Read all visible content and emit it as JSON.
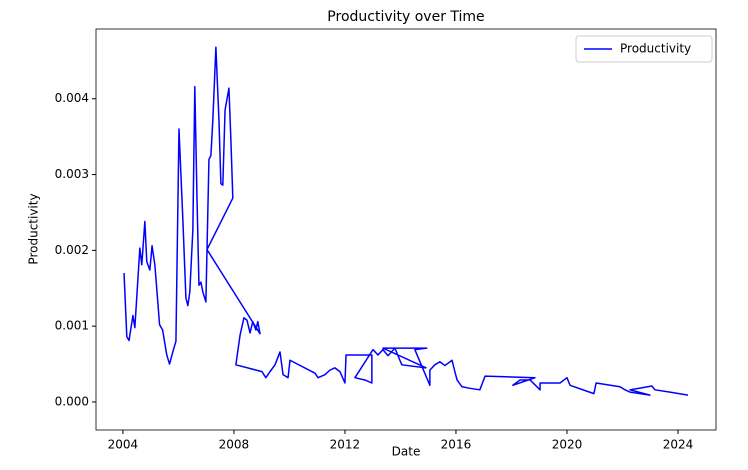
{
  "chart_data": {
    "type": "line",
    "title": "Productivity over Time",
    "xlabel": "Date",
    "ylabel": "Productivity",
    "x": [
      2004.04,
      2004.14,
      2004.22,
      2004.36,
      2004.43,
      2004.61,
      2004.68,
      2004.79,
      2004.86,
      2004.97,
      2005.05,
      2005.15,
      2005.25,
      2005.32,
      2005.43,
      2005.58,
      2005.68,
      2005.82,
      2005.91,
      2006.02,
      2006.16,
      2006.27,
      2006.34,
      2006.41,
      2006.52,
      2006.59,
      2006.67,
      2006.74,
      2006.81,
      2006.88,
      2006.99,
      2007.03,
      2007.1,
      2007.17,
      2007.24,
      2007.35,
      2007.46,
      2007.53,
      2007.6,
      2007.68,
      2007.82,
      2007.89,
      2007.96,
      2007.03,
      2008.94,
      2008.86,
      2008.79,
      2008.68,
      2008.58,
      2008.47,
      2008.36,
      2008.22,
      2008.07,
      2009.01,
      2009.15,
      2009.3,
      2009.48,
      2009.66,
      2009.77,
      2009.95,
      2010.02,
      2010.92,
      2011.03,
      2011.28,
      2011.46,
      2011.64,
      2011.82,
      2012.0,
      2012.04,
      2012.97,
      2012.97,
      2012.72,
      2012.36,
      2013.01,
      2013.19,
      2013.37,
      2013.55,
      2013.8,
      2013.98,
      2014.05,
      2014.92,
      2013.37,
      2014.95,
      2014.52,
      2015.06,
      2015.06,
      2015.24,
      2015.42,
      2015.6,
      2015.86,
      2015.96,
      2016.04,
      2016.22,
      2016.5,
      2016.86,
      2017.05,
      2018.85,
      2018.05,
      2018.31,
      2018.67,
      2019.03,
      2019.03,
      2019.75,
      2020.0,
      2020.11,
      2020.97,
      2021.05,
      2021.91,
      2022.09,
      2022.27,
      2022.99,
      2022.27,
      2023.06,
      2023.17,
      2023.71,
      2024.36
    ],
    "series": [
      {
        "name": "Productivity",
        "color": "#0000ff",
        "values": [
          0.0017,
          0.00086,
          0.00081,
          0.00114,
          0.00098,
          0.00203,
          0.00181,
          0.00238,
          0.00185,
          0.00174,
          0.00206,
          0.00181,
          0.00135,
          0.00102,
          0.00095,
          0.00062,
          0.0005,
          0.00069,
          0.0008,
          0.0036,
          0.0024,
          0.00137,
          0.00127,
          0.00145,
          0.00227,
          0.00416,
          0.00267,
          0.00154,
          0.00158,
          0.00145,
          0.00132,
          0.00201,
          0.0032,
          0.00325,
          0.00372,
          0.00468,
          0.00372,
          0.00288,
          0.00286,
          0.00385,
          0.00414,
          0.00346,
          0.00269,
          0.00201,
          0.0009,
          0.00106,
          0.00095,
          0.00106,
          0.00091,
          0.00108,
          0.00111,
          0.00088,
          0.00049,
          0.0004,
          0.00032,
          0.0004,
          0.00049,
          0.00066,
          0.00036,
          0.00032,
          0.00055,
          0.00038,
          0.00032,
          0.00036,
          0.00042,
          0.00045,
          0.0004,
          0.00025,
          0.00062,
          0.00062,
          0.00025,
          0.00029,
          0.00032,
          0.00069,
          0.00062,
          0.00069,
          0.00061,
          0.00071,
          0.00055,
          0.00049,
          0.00045,
          0.00071,
          0.00071,
          0.00069,
          0.00022,
          0.00042,
          0.00049,
          0.00053,
          0.00048,
          0.00055,
          0.0004,
          0.00029,
          0.0002,
          0.00018,
          0.00016,
          0.00034,
          0.00032,
          0.00022,
          0.00029,
          0.00029,
          0.00016,
          0.00025,
          0.00025,
          0.00032,
          0.00022,
          0.00011,
          0.00025,
          0.0002,
          0.00016,
          0.00013,
          9e-05,
          0.00016,
          0.00021,
          0.00016,
          0.00013,
          9e-05
        ]
      }
    ],
    "xlim": [
      2003.03,
      2025.37
    ],
    "ylim": [
      -0.00037,
      0.00492
    ],
    "xticks": [
      2004,
      2008,
      2012,
      2016,
      2020,
      2024
    ],
    "yticks": [
      {
        "value": 0,
        "label": "0.000"
      },
      {
        "value": 0.001,
        "label": "0.001"
      },
      {
        "value": 0.002,
        "label": "0.002"
      },
      {
        "value": 0.003,
        "label": "0.003"
      },
      {
        "value": 0.004,
        "label": "0.004"
      }
    ],
    "legend": "upper right"
  }
}
